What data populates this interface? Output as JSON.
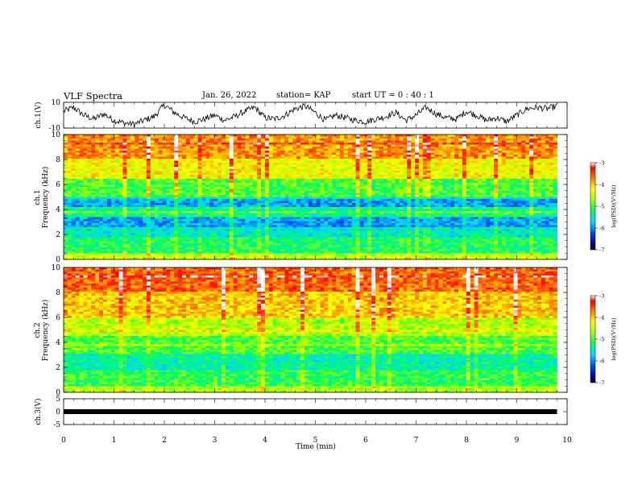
{
  "header": {
    "title": "VLF Spectra",
    "date": "Jan. 26, 2022",
    "station": "station= KAP",
    "start_ut": "start  UT =  0 : 40 : 1"
  },
  "chart_data": [
    {
      "type": "line",
      "panel": "ch1-waveform",
      "ylabel": "ch.1(V)",
      "ylim": [
        -10,
        10
      ],
      "yticks": [
        "10",
        "-10"
      ],
      "xlim": [
        0,
        10
      ],
      "series": [
        {
          "x": [
            0,
            0.2,
            0.4,
            0.6,
            0.8,
            1.0,
            1.2,
            1.4,
            1.6,
            1.8,
            2.0,
            2.2,
            2.4,
            2.6,
            2.8,
            3.0,
            3.2,
            3.4,
            3.6,
            3.8,
            4.0,
            4.2,
            4.4,
            4.6,
            4.8,
            5.0,
            5.2,
            5.4,
            5.6,
            5.8,
            6.0,
            6.2,
            6.4,
            6.6,
            6.8,
            7.0,
            7.2,
            7.4,
            7.6,
            7.8,
            8.0,
            8.2,
            8.4,
            8.6,
            8.8,
            9.0,
            9.2,
            9.4,
            9.6,
            9.8
          ],
          "values": [
            3,
            6,
            0,
            -3,
            1,
            -4,
            -6,
            -7,
            -4,
            -1,
            8,
            2,
            -2,
            -5,
            -3,
            0,
            -4,
            -1,
            3,
            6,
            -2,
            -3,
            0,
            5,
            7,
            2,
            -4,
            0,
            -2,
            -4,
            -5,
            -3,
            -1,
            2,
            -4,
            0,
            6,
            1,
            -2,
            -3,
            3,
            0,
            -4,
            -2,
            -5,
            0,
            5,
            6,
            5,
            7
          ]
        }
      ]
    },
    {
      "type": "heatmap",
      "panel": "ch1-spectrogram",
      "ylabel": "ch.1\nFrequency (kHz)",
      "ylim": [
        0,
        10
      ],
      "yticks": [
        "0",
        "2",
        "4",
        "6",
        "8",
        "10"
      ],
      "xlim": [
        0,
        10
      ],
      "colorbar": {
        "label": "log(PSD)(V²/Hz)",
        "range": [
          -7,
          -3
        ],
        "ticks": [
          "-3",
          "-4",
          "-5",
          "-6",
          "-7"
        ]
      },
      "bands": [
        [
          0,
          0.5,
          -4.5
        ],
        [
          0.5,
          1.8,
          -5.2
        ],
        [
          1.8,
          2.6,
          -5.5
        ],
        [
          2.6,
          3.4,
          -5.9
        ],
        [
          3.4,
          4.2,
          -5.3
        ],
        [
          4.2,
          5.0,
          -5.9
        ],
        [
          5.0,
          6.5,
          -5.0
        ],
        [
          6.5,
          8.0,
          -4.3
        ],
        [
          8.0,
          10.0,
          -3.8
        ]
      ]
    },
    {
      "type": "heatmap",
      "panel": "ch2-spectrogram",
      "ylabel": "ch.2\nFrequency (kHz)",
      "ylim": [
        0,
        10
      ],
      "yticks": [
        "0",
        "2",
        "4",
        "6",
        "8",
        "10"
      ],
      "xlim": [
        0,
        10
      ],
      "colorbar": {
        "label": "log(PSD)(V²/Hz)",
        "range": [
          -7,
          -3
        ],
        "ticks": [
          "-3",
          "-4",
          "-5",
          "-6",
          "-7"
        ]
      },
      "bands": [
        [
          0,
          0.5,
          -4.6
        ],
        [
          0.5,
          1.8,
          -5.1
        ],
        [
          1.8,
          3.0,
          -5.4
        ],
        [
          3.0,
          4.5,
          -5.0
        ],
        [
          4.5,
          6.0,
          -4.6
        ],
        [
          6.0,
          8.0,
          -4.0
        ],
        [
          8.0,
          10.0,
          -3.6
        ]
      ]
    },
    {
      "type": "line",
      "panel": "ch3-waveform",
      "ylabel": "ch.3(V)",
      "ylim": [
        -5,
        5
      ],
      "yticks": [
        "5",
        "0",
        "-5"
      ],
      "xlim": [
        0,
        10
      ],
      "xlabel": "Time (min)",
      "xticks": [
        "0",
        "1",
        "2",
        "3",
        "4",
        "5",
        "6",
        "7",
        "8",
        "9",
        "10"
      ],
      "series": [
        {
          "x": [
            0,
            9.8
          ],
          "values": [
            0,
            0
          ]
        }
      ]
    }
  ]
}
